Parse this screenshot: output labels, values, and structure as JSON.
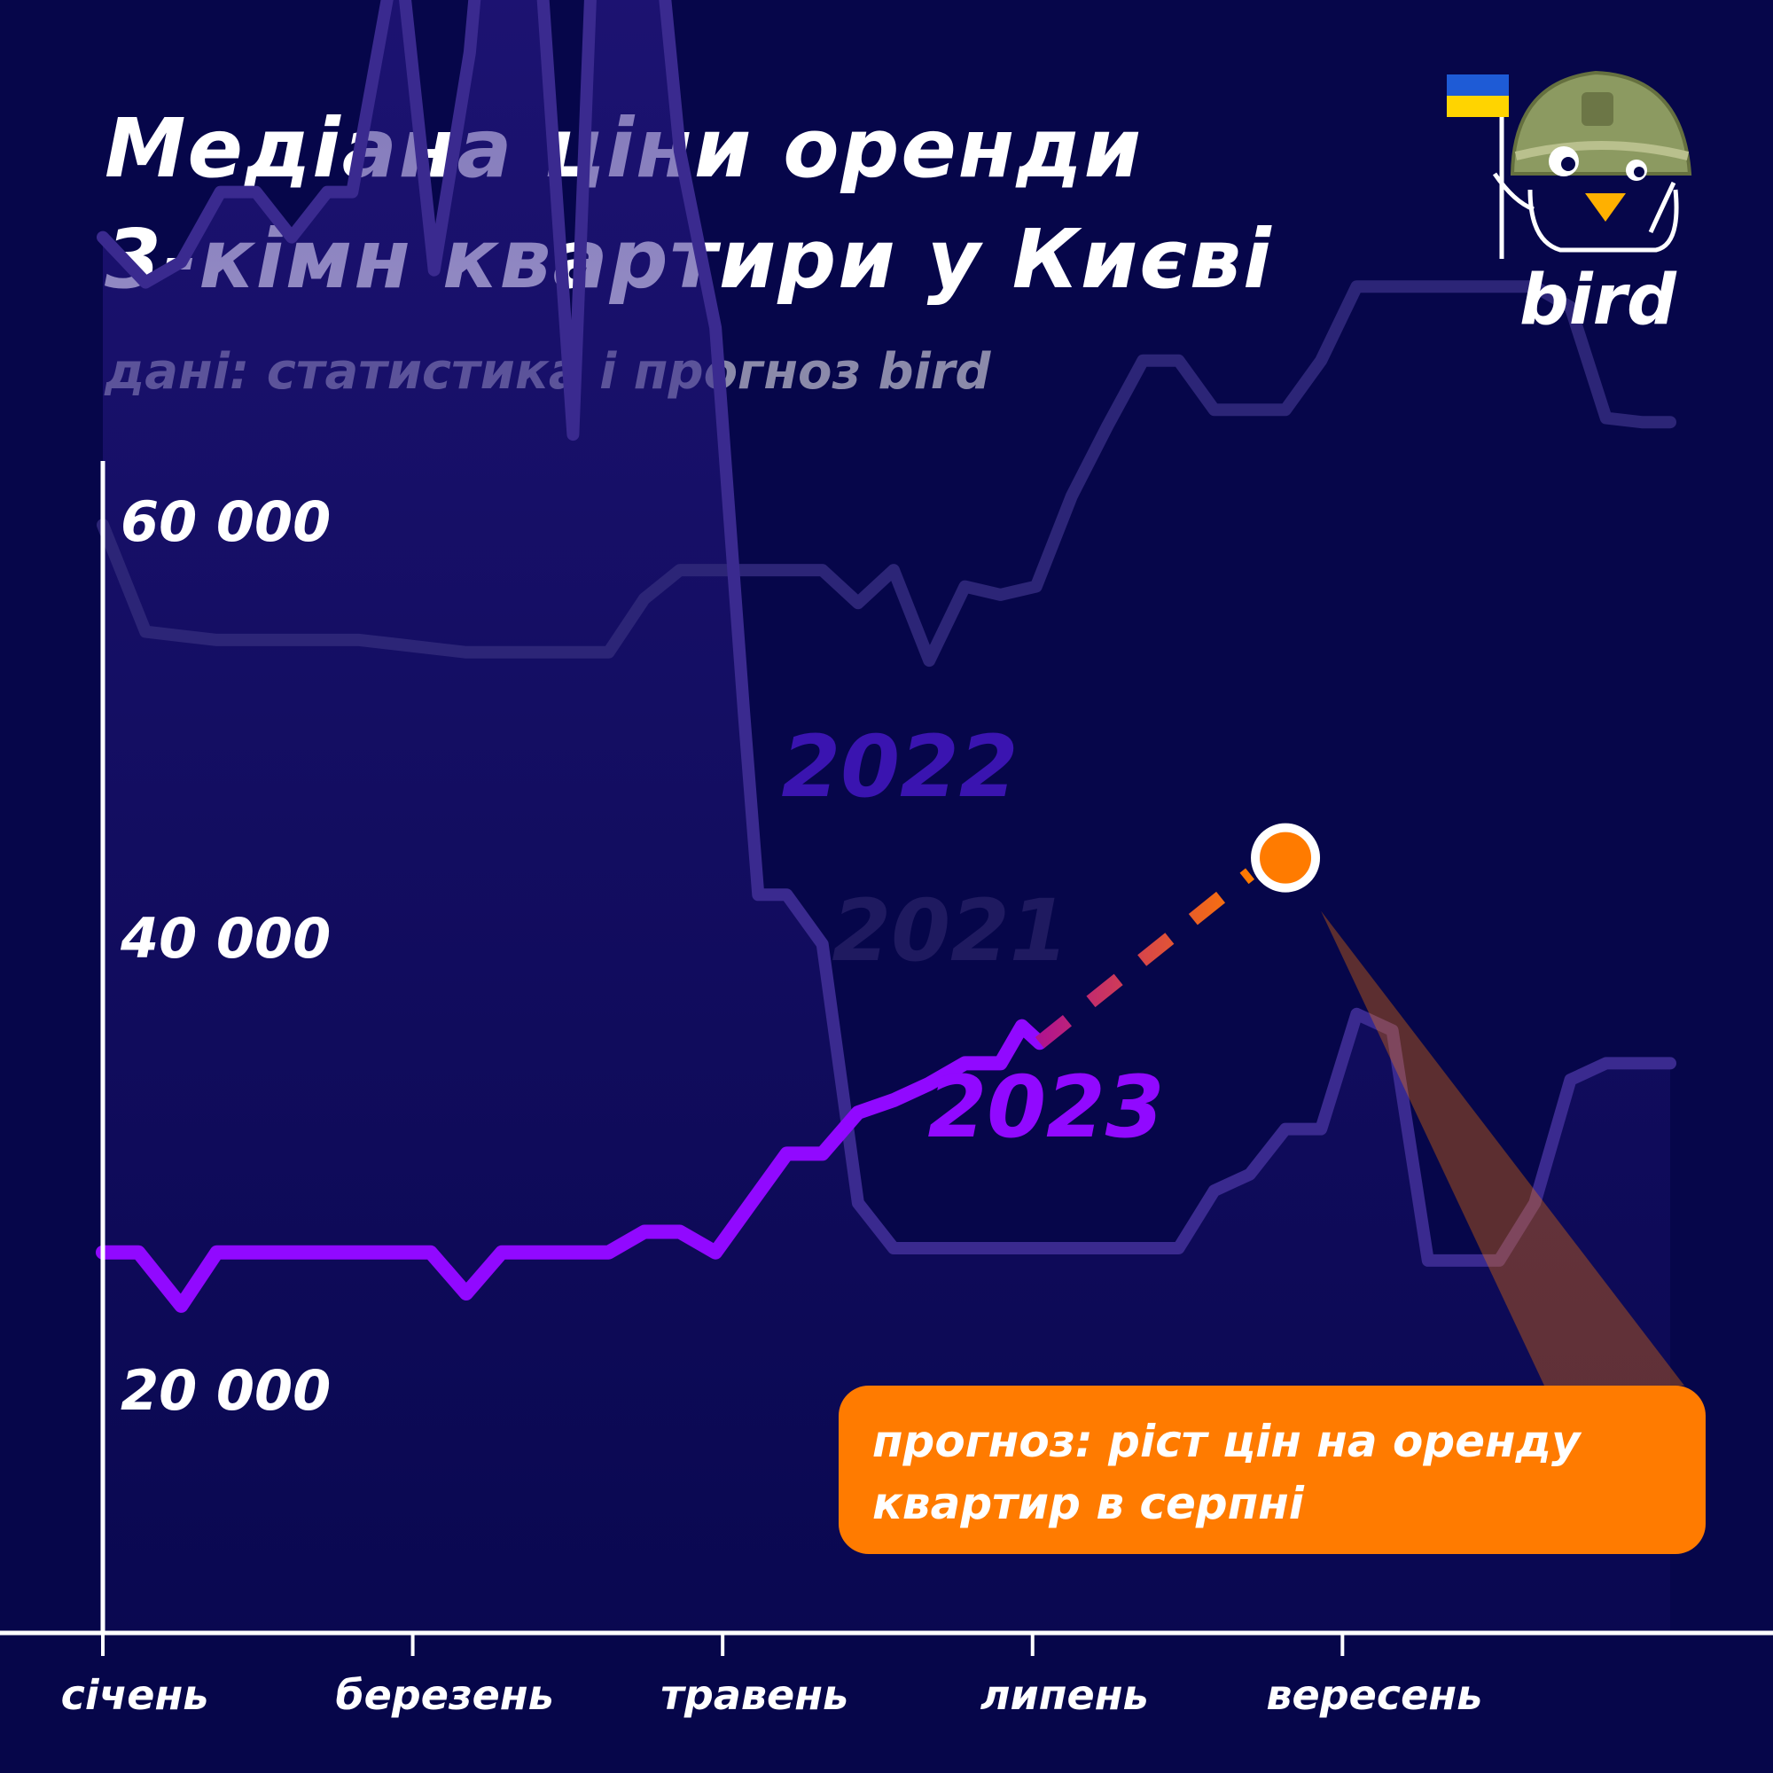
{
  "title": {
    "line1": "Медіана ціни оренди",
    "line2": "3-кімн квартири у Києві"
  },
  "subtitle": "дані: статистика і прогноз bird",
  "logo": {
    "text": "bird",
    "icon": "bird-mascot-helmet-icon",
    "flag": "ukraine-flag-icon"
  },
  "callout": "прогноз: ріст цін на оренду квартир в серпні",
  "colors": {
    "background": "#06064a",
    "series_2021": "#2c2577",
    "series_2022": "#3a2a8f",
    "series_2023": "#9109ff",
    "forecast_start": "#b8198a",
    "forecast_end": "#ff7b00",
    "callout": "#ff7b00"
  },
  "chart_data": {
    "type": "line",
    "x_unit": "week",
    "xlim": [
      0,
      44
    ],
    "ylim": [
      14000,
      68000
    ],
    "y_ticks": [
      {
        "value": 20000,
        "label": "20 000"
      },
      {
        "value": 40000,
        "label": "40 000"
      },
      {
        "value": 60000,
        "label": "60 000"
      }
    ],
    "x_ticks": [
      {
        "value": 0,
        "label": "січень"
      },
      {
        "value": 8.7,
        "label": "березень"
      },
      {
        "value": 17.4,
        "label": "травень"
      },
      {
        "value": 26.1,
        "label": "липень"
      },
      {
        "value": 34.8,
        "label": "вересень"
      }
    ],
    "series": [
      {
        "name": "2022",
        "x": [
          0,
          1.2,
          2.2,
          3.3,
          4.3,
          5.3,
          6.3,
          7.0,
          8.3,
          9.3,
          10.3,
          11.2,
          12.2,
          13.2,
          14.2,
          15.2,
          16.2,
          17.2,
          18.0,
          18.4,
          19.2,
          20.2,
          21.2,
          22.2,
          23.2,
          24.2,
          25.2,
          26.2,
          27.2,
          28.2,
          29.2,
          30.2,
          31.2,
          32.2,
          33.2,
          34.2,
          35.2,
          36.2,
          37.2,
          38.2,
          39.2,
          40.2,
          41.2,
          42.2,
          43.2,
          44
        ],
        "y": [
          48300,
          47200,
          47700,
          49400,
          49400,
          48300,
          49400,
          49400,
          55600,
          47500,
          52800,
          61400,
          56100,
          43500,
          65300,
          59300,
          50400,
          46100,
          36700,
          32300,
          32300,
          31100,
          24800,
          23700,
          23700,
          23700,
          23700,
          23700,
          23700,
          23700,
          23700,
          23700,
          25100,
          25500,
          26600,
          26600,
          29400,
          29000,
          23400,
          23400,
          23400,
          24800,
          27800,
          28200,
          28200,
          28200
        ]
      },
      {
        "name": "2021",
        "x": [
          0,
          1.2,
          2.2,
          3.2,
          4.2,
          5.2,
          6.2,
          7.2,
          8.2,
          9.2,
          10.2,
          11.2,
          12.2,
          13.2,
          14.2,
          15.2,
          16.2,
          17.2,
          18.2,
          19.2,
          20.2,
          21.2,
          22.2,
          23.2,
          24.2,
          25.2,
          26.2,
          27.2,
          28.2,
          29.2,
          30.2,
          31.2,
          32.2,
          33.2,
          34.2,
          35.2,
          36.2,
          37.2,
          38.2,
          39.2,
          40.2,
          41.2,
          42.2,
          43.2,
          44
        ],
        "y": [
          41300,
          38700,
          38600,
          38500,
          38500,
          38500,
          38500,
          38500,
          38400,
          38300,
          38200,
          38200,
          38200,
          38200,
          38200,
          39500,
          40200,
          40200,
          40200,
          40200,
          40200,
          39400,
          40200,
          38000,
          39800,
          39600,
          39800,
          42000,
          43700,
          45300,
          45300,
          44100,
          44100,
          44100,
          45300,
          47100,
          47100,
          47100,
          47100,
          47100,
          47100,
          46600,
          43900,
          43800,
          43800
        ]
      },
      {
        "name": "2023",
        "x": [
          0,
          1.0,
          2.2,
          3.2,
          4.2,
          5.2,
          6.2,
          7.2,
          8.2,
          9.2,
          10.2,
          11.2,
          12.2,
          13.2,
          14.2,
          15.2,
          16.2,
          17.2,
          18.2,
          19.2,
          20.2,
          21.2,
          22.2,
          23.2,
          24.2,
          25.2,
          25.8,
          26.3
        ],
        "y": [
          23600,
          23600,
          22300,
          23600,
          23600,
          23600,
          23600,
          23600,
          23600,
          23600,
          22600,
          23600,
          23600,
          23600,
          23600,
          24100,
          24100,
          23600,
          24800,
          26000,
          26000,
          27000,
          27300,
          27700,
          28200,
          28200,
          29100,
          28700
        ]
      },
      {
        "name": "",
        "x": [
          26.3,
          33.2
        ],
        "y": [
          28700,
          33200
        ]
      }
    ]
  }
}
